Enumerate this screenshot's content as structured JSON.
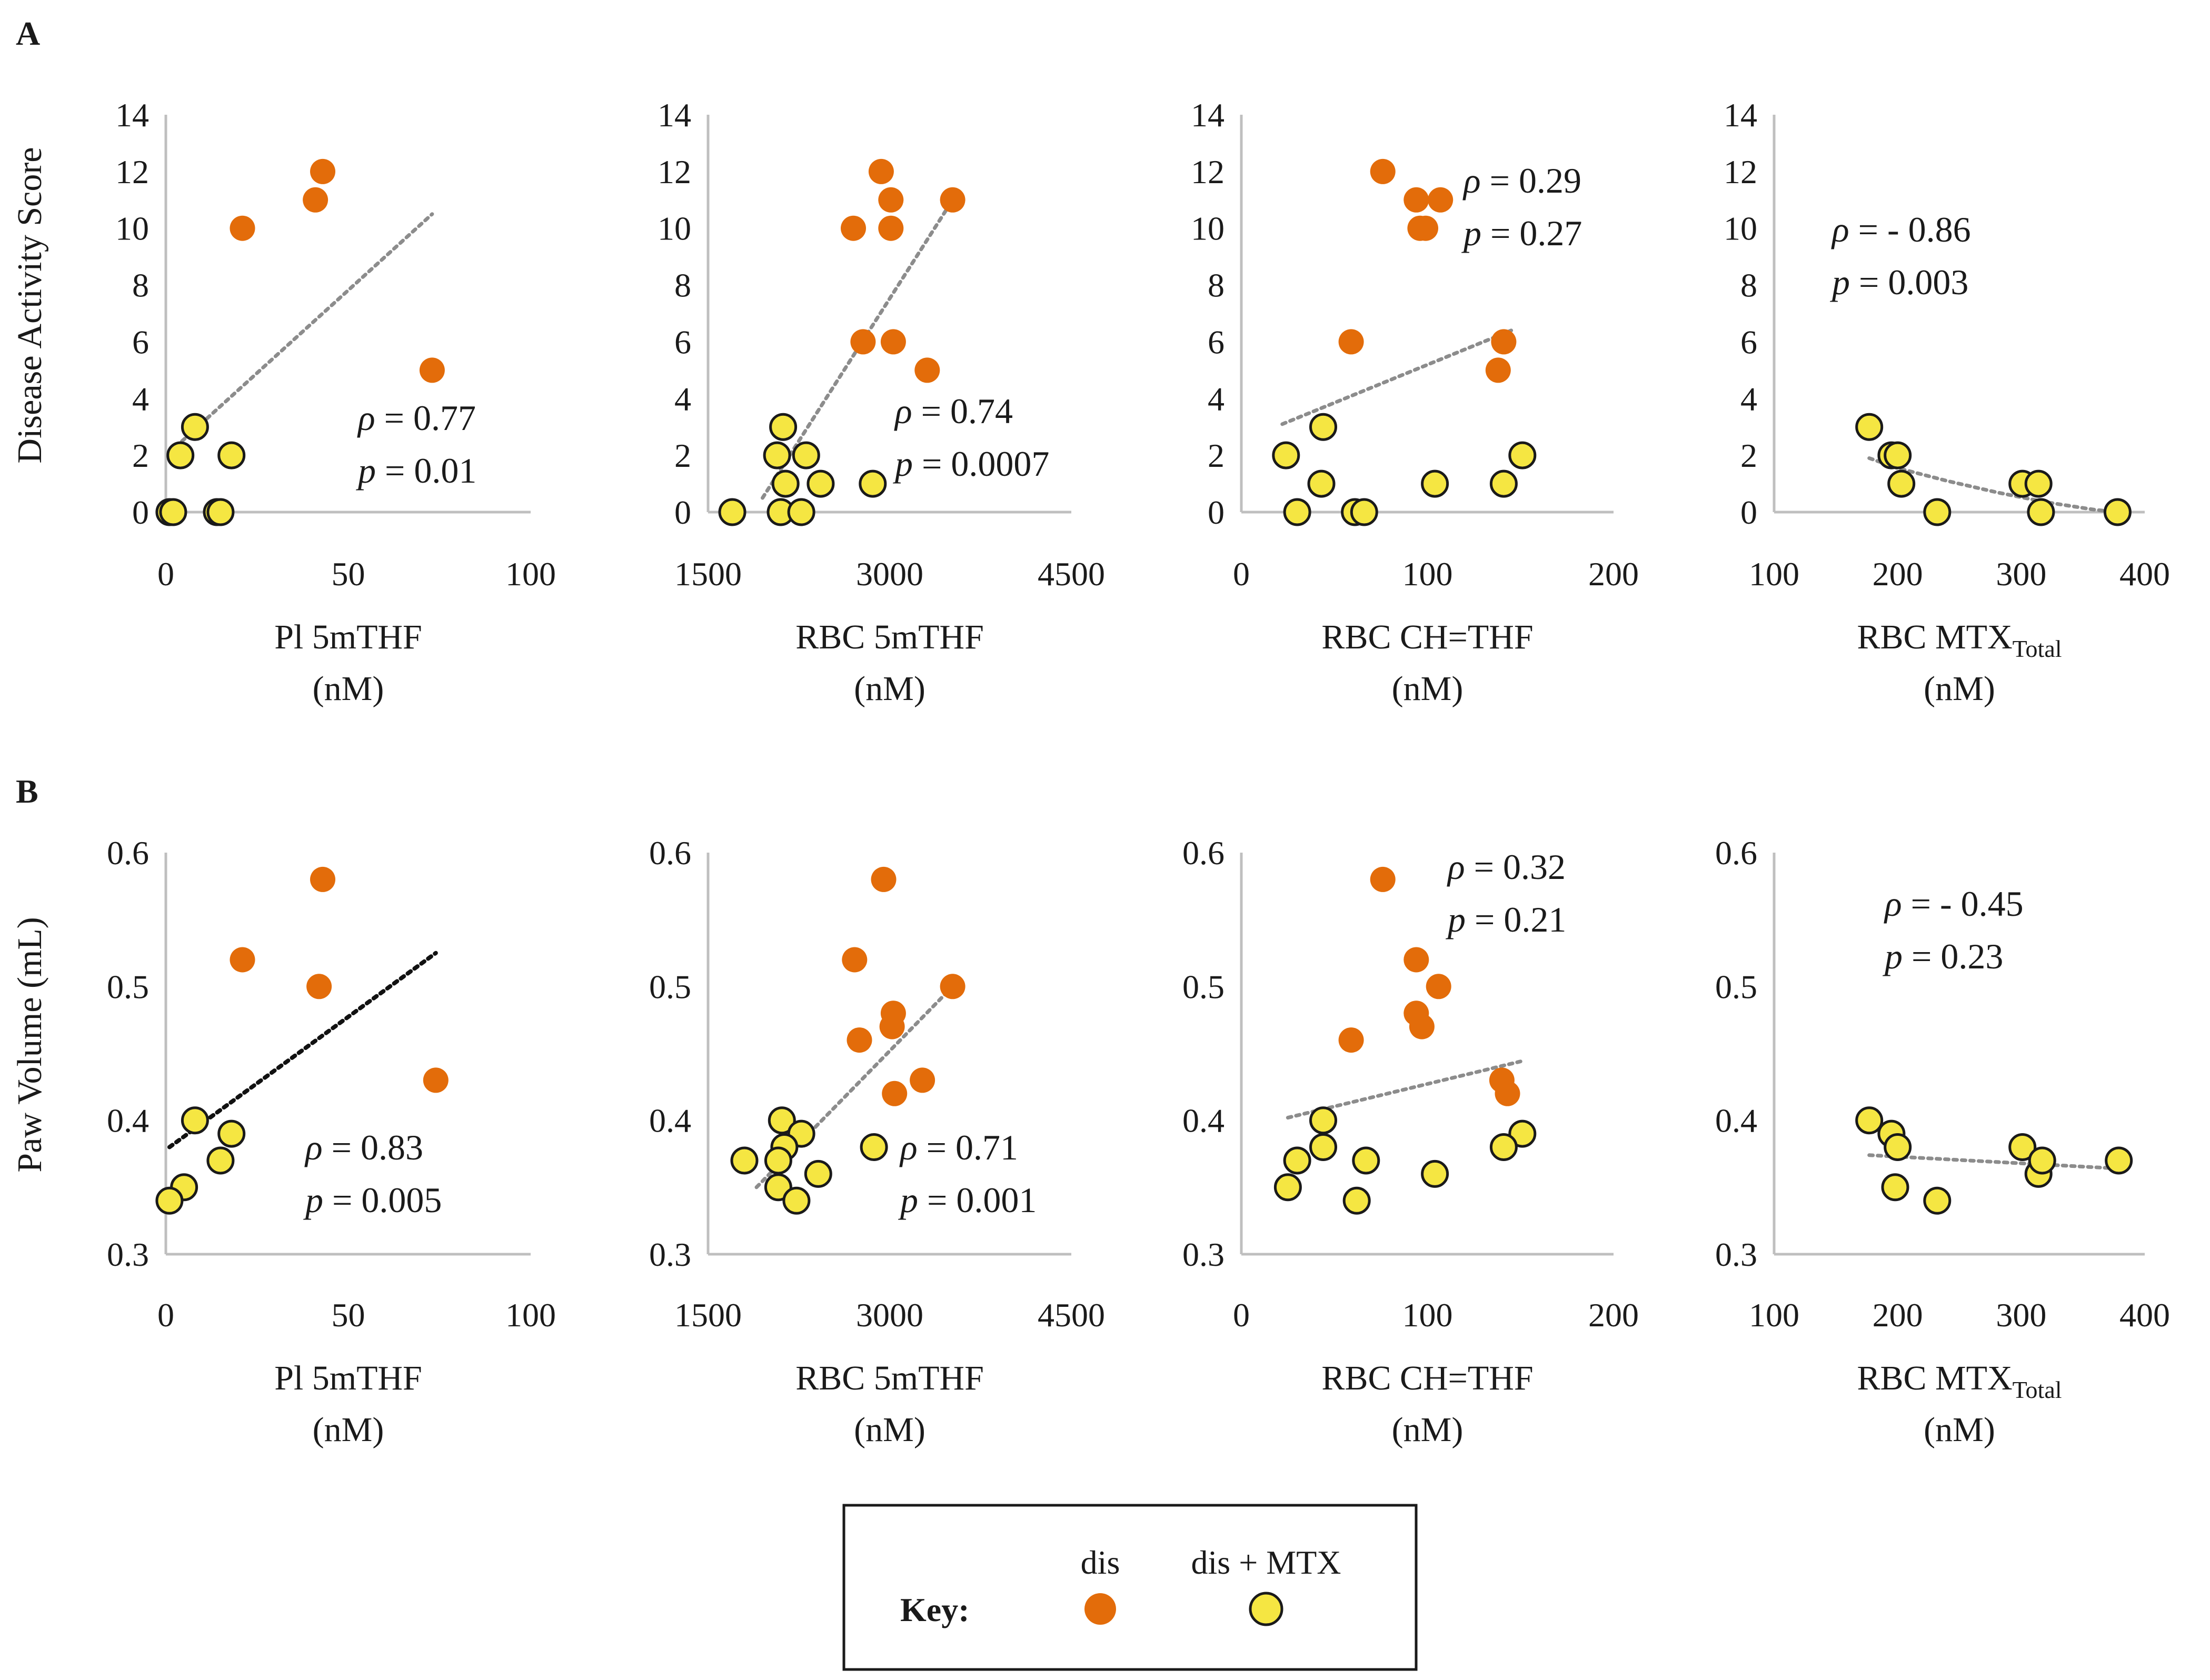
{
  "colors": {
    "dis": "#E36C0A",
    "dis_mtx": "#F5E642",
    "outline": "#1a1a1a",
    "axis": "#bfbfbf",
    "trend": "#8c8c8c",
    "trend_dark": "#111111",
    "text": "#1a1a1a"
  },
  "panels": {
    "A": {
      "label": "A",
      "ylabel": "Disease Activity Score"
    },
    "B": {
      "label": "B",
      "ylabel": "Paw Volume (mL)"
    }
  },
  "legend": {
    "title": "Key:",
    "dis_label": "dis",
    "dis_mtx_label": "dis + MTX"
  },
  "chart_data": [
    {
      "id": "A1",
      "row": "A",
      "col": 0,
      "type": "scatter",
      "xlabel": "Pl 5mTHF",
      "xlabel_sub": "",
      "xunit": "(nM)",
      "xlim": [
        0,
        100
      ],
      "xticks": [
        0,
        50,
        100
      ],
      "ylim": [
        0,
        14
      ],
      "yticks": [
        0,
        2,
        4,
        6,
        8,
        10,
        12,
        14
      ],
      "series": [
        {
          "name": "dis",
          "points": [
            [
              21,
              10
            ],
            [
              41,
              11
            ],
            [
              43,
              12
            ],
            [
              73,
              5
            ]
          ]
        },
        {
          "name": "dis + MTX",
          "points": [
            [
              8,
              3
            ],
            [
              4,
              2
            ],
            [
              18,
              2
            ],
            [
              1,
              0
            ],
            [
              2,
              0
            ],
            [
              14,
              0
            ],
            [
              15,
              0
            ]
          ]
        }
      ],
      "trend": {
        "type": "linear",
        "from": [
          1,
          2.1
        ],
        "to": [
          73,
          10.5
        ],
        "dark": false
      },
      "stats": {
        "rho_text": " = 0.77",
        "p_text": " = 0.01"
      }
    },
    {
      "id": "A2",
      "row": "A",
      "col": 1,
      "type": "scatter",
      "xlabel": "RBC 5mTHF",
      "xlabel_sub": "",
      "xunit": "(nM)",
      "xlim": [
        1500,
        4500
      ],
      "xticks": [
        1500,
        3000,
        4500
      ],
      "ylim": [
        0,
        14
      ],
      "yticks": [
        0,
        2,
        4,
        6,
        8,
        10,
        12,
        14
      ],
      "series": [
        {
          "name": "dis",
          "points": [
            [
              2700,
              10
            ],
            [
              2780,
              6
            ],
            [
              2930,
              12
            ],
            [
              3010,
              11
            ],
            [
              3010,
              10
            ],
            [
              3030,
              6
            ],
            [
              3310,
              5
            ],
            [
              3520,
              11
            ]
          ]
        },
        {
          "name": "dis + MTX",
          "points": [
            [
              1700,
              0
            ],
            [
              2120,
              3
            ],
            [
              2070,
              2
            ],
            [
              2310,
              2
            ],
            [
              2140,
              1
            ],
            [
              2430,
              1
            ],
            [
              2860,
              1
            ],
            [
              2100,
              0
            ],
            [
              2270,
              0
            ]
          ]
        }
      ],
      "trend": {
        "type": "linear",
        "from": [
          1950,
          0.5
        ],
        "to": [
          3520,
          11
        ],
        "dark": false
      },
      "stats": {
        "rho_text": " = 0.74",
        "p_text": " = 0.0007"
      }
    },
    {
      "id": "A3",
      "row": "A",
      "col": 2,
      "type": "scatter",
      "xlabel": "RBC CH=THF",
      "xlabel_sub": "",
      "xunit": "(nM)",
      "xlim": [
        0,
        200
      ],
      "xticks": [
        0,
        100,
        200
      ],
      "ylim": [
        0,
        14
      ],
      "yticks": [
        0,
        2,
        4,
        6,
        8,
        10,
        12,
        14
      ],
      "series": [
        {
          "name": "dis",
          "points": [
            [
              76,
              12
            ],
            [
              94,
              11
            ],
            [
              107,
              11
            ],
            [
              96,
              10
            ],
            [
              99,
              10
            ],
            [
              59,
              6
            ],
            [
              141,
              6
            ],
            [
              138,
              5
            ]
          ]
        },
        {
          "name": "dis + MTX",
          "points": [
            [
              44,
              3
            ],
            [
              24,
              2
            ],
            [
              151,
              2
            ],
            [
              43,
              1
            ],
            [
              104,
              1
            ],
            [
              141,
              1
            ],
            [
              30,
              0
            ],
            [
              61,
              0
            ],
            [
              66,
              0
            ]
          ]
        }
      ],
      "trend": {
        "type": "linear",
        "from": [
          22,
          3.1
        ],
        "to": [
          145,
          6.4
        ],
        "dark": false
      },
      "stats": {
        "rho_text": " = 0.29",
        "p_text": " = 0.27"
      }
    },
    {
      "id": "A4",
      "row": "A",
      "col": 3,
      "type": "scatter",
      "xlabel": "RBC MTX",
      "xlabel_sub": "Total",
      "xunit": "(nM)",
      "xlim": [
        100,
        400
      ],
      "xticks": [
        100,
        200,
        300,
        400
      ],
      "ylim": [
        0,
        14
      ],
      "yticks": [
        0,
        2,
        4,
        6,
        8,
        10,
        12,
        14
      ],
      "series": [
        {
          "name": "dis",
          "points": []
        },
        {
          "name": "dis + MTX",
          "points": [
            [
              177,
              3
            ],
            [
              195,
              2
            ],
            [
              200,
              2
            ],
            [
              203,
              1
            ],
            [
              232,
              0
            ],
            [
              301,
              1
            ],
            [
              314,
              1
            ],
            [
              316,
              0
            ],
            [
              378,
              0
            ]
          ]
        }
      ],
      "trend": {
        "type": "curve",
        "points": [
          [
            177,
            1.9
          ],
          [
            200,
            1.55
          ],
          [
            240,
            1.1
          ],
          [
            280,
            0.7
          ],
          [
            320,
            0.35
          ],
          [
            360,
            0.08
          ],
          [
            378,
            0
          ]
        ],
        "dark": false
      },
      "stats": {
        "rho_text": " = - 0.86",
        "p_text": " = 0.003"
      }
    },
    {
      "id": "B1",
      "row": "B",
      "col": 0,
      "type": "scatter",
      "xlabel": "Pl 5mTHF",
      "xlabel_sub": "",
      "xunit": "(nM)",
      "xlim": [
        0,
        100
      ],
      "xticks": [
        0,
        50,
        100
      ],
      "ylim": [
        0.3,
        0.6
      ],
      "yticks": [
        0.3,
        0.4,
        0.5,
        0.6
      ],
      "series": [
        {
          "name": "dis",
          "points": [
            [
              43,
              0.58
            ],
            [
              21,
              0.52
            ],
            [
              42,
              0.5
            ],
            [
              74,
              0.43
            ]
          ]
        },
        {
          "name": "dis + MTX",
          "points": [
            [
              8,
              0.4
            ],
            [
              18,
              0.39
            ],
            [
              15,
              0.37
            ],
            [
              5,
              0.35
            ],
            [
              1,
              0.34
            ]
          ]
        }
      ],
      "trend": {
        "type": "linear",
        "from": [
          1,
          0.38
        ],
        "to": [
          74,
          0.525
        ],
        "dark": true
      },
      "stats": {
        "rho_text": " = 0.83",
        "p_text": " = 0.005"
      }
    },
    {
      "id": "B2",
      "row": "B",
      "col": 1,
      "type": "scatter",
      "xlabel": "RBC 5mTHF",
      "xlabel_sub": "",
      "xunit": "(nM)",
      "xlim": [
        1500,
        4500
      ],
      "xticks": [
        1500,
        3000,
        4500
      ],
      "ylim": [
        0.3,
        0.6
      ],
      "yticks": [
        0.3,
        0.4,
        0.5,
        0.6
      ],
      "series": [
        {
          "name": "dis",
          "points": [
            [
              2950,
              0.58
            ],
            [
              2710,
              0.52
            ],
            [
              3520,
              0.5
            ],
            [
              3030,
              0.48
            ],
            [
              3020,
              0.47
            ],
            [
              2750,
              0.46
            ],
            [
              3270,
              0.43
            ],
            [
              3040,
              0.42
            ]
          ]
        },
        {
          "name": "dis + MTX",
          "points": [
            [
              2110,
              0.4
            ],
            [
              2270,
              0.39
            ],
            [
              2130,
              0.38
            ],
            [
              2870,
              0.38
            ],
            [
              1800,
              0.37
            ],
            [
              2080,
              0.37
            ],
            [
              2410,
              0.36
            ],
            [
              2080,
              0.35
            ],
            [
              2230,
              0.34
            ]
          ]
        }
      ],
      "trend": {
        "type": "linear",
        "from": [
          1900,
          0.35
        ],
        "to": [
          3520,
          0.5
        ],
        "dark": false
      },
      "stats": {
        "rho_text": " = 0.71",
        "p_text": " = 0.001"
      }
    },
    {
      "id": "B3",
      "row": "B",
      "col": 2,
      "type": "scatter",
      "xlabel": "RBC CH=THF",
      "xlabel_sub": "",
      "xunit": "(nM)",
      "xlim": [
        0,
        200
      ],
      "xticks": [
        0,
        100,
        200
      ],
      "ylim": [
        0.3,
        0.6
      ],
      "yticks": [
        0.3,
        0.4,
        0.5,
        0.6
      ],
      "series": [
        {
          "name": "dis",
          "points": [
            [
              76,
              0.58
            ],
            [
              94,
              0.52
            ],
            [
              106,
              0.5
            ],
            [
              94,
              0.48
            ],
            [
              97,
              0.47
            ],
            [
              59,
              0.46
            ],
            [
              140,
              0.43
            ],
            [
              143,
              0.42
            ]
          ]
        },
        {
          "name": "dis + MTX",
          "points": [
            [
              44,
              0.4
            ],
            [
              151,
              0.39
            ],
            [
              30,
              0.37
            ],
            [
              67,
              0.37
            ],
            [
              44,
              0.38
            ],
            [
              141,
              0.38
            ],
            [
              104,
              0.36
            ],
            [
              25,
              0.35
            ],
            [
              62,
              0.34
            ]
          ]
        }
      ],
      "trend": {
        "type": "linear",
        "from": [
          25,
          0.402
        ],
        "to": [
          150,
          0.444
        ],
        "dark": false
      },
      "stats": {
        "rho_text": " = 0.32",
        "p_text": " = 0.21"
      }
    },
    {
      "id": "B4",
      "row": "B",
      "col": 3,
      "type": "scatter",
      "xlabel": "RBC MTX",
      "xlabel_sub": "Total",
      "xunit": "(nM)",
      "xlim": [
        100,
        400
      ],
      "xticks": [
        100,
        200,
        300,
        400
      ],
      "ylim": [
        0.3,
        0.6
      ],
      "yticks": [
        0.3,
        0.4,
        0.5,
        0.6
      ],
      "series": [
        {
          "name": "dis",
          "points": []
        },
        {
          "name": "dis + MTX",
          "points": [
            [
              177,
              0.4
            ],
            [
              195,
              0.39
            ],
            [
              200,
              0.38
            ],
            [
              198,
              0.35
            ],
            [
              232,
              0.34
            ],
            [
              301,
              0.38
            ],
            [
              314,
              0.36
            ],
            [
              317,
              0.37
            ],
            [
              379,
              0.37
            ]
          ]
        }
      ],
      "trend": {
        "type": "linear",
        "from": [
          177,
          0.374
        ],
        "to": [
          379,
          0.364
        ],
        "dark": false
      },
      "stats": {
        "rho_text": " = - 0.45",
        "p_text": " = 0.23"
      }
    }
  ]
}
